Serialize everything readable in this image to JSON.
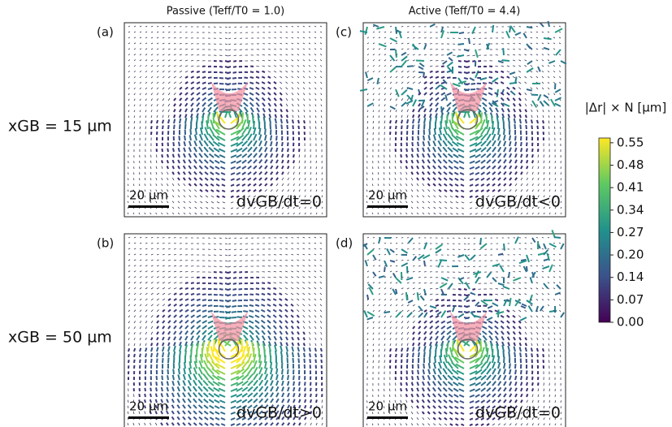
{
  "chart_data": {
    "type": "quiver",
    "column_titles": [
      "Passive (Teff/T0 = 1.0)",
      "Active (Teff/T0 = 4.4)"
    ],
    "row_labels": [
      "xGB = 15 µm",
      "xGB = 50 µm"
    ],
    "panels": [
      {
        "label": "(a)",
        "annotation": "dvGB/dt=0",
        "scale_bar": "20 µm"
      },
      {
        "label": "(c)",
        "annotation": "dvGB/dt<0",
        "scale_bar": "20 µm"
      },
      {
        "label": "(b)",
        "annotation": "dvGB/dt>0",
        "scale_bar": "20 µm"
      },
      {
        "label": "(d)",
        "annotation": "dvGB/dt=0",
        "scale_bar": "20 µm"
      }
    ],
    "colorbar": {
      "label": "|Δr| × N [µm]",
      "ylim": [
        0,
        0.56
      ],
      "yticks": [
        {
          "value": 0,
          "label": "0.00"
        },
        {
          "value": 0.0682,
          "label": "0.07"
        },
        {
          "value": 0.1364,
          "label": "0.14"
        },
        {
          "value": 0.2046,
          "label": "0.20"
        },
        {
          "value": 0.2728,
          "label": "0.27"
        },
        {
          "value": 0.341,
          "label": "0.34"
        },
        {
          "value": 0.4092,
          "label": "0.41"
        },
        {
          "value": 0.4774,
          "label": "0.48"
        },
        {
          "value": 0.5456,
          "label": "0.55"
        }
      ]
    }
  }
}
